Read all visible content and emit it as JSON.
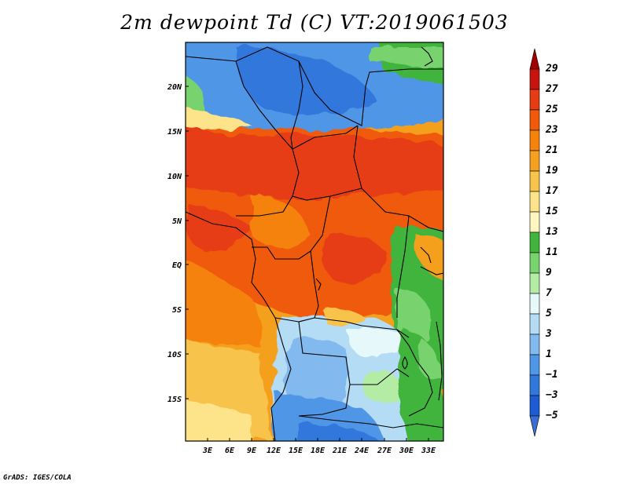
{
  "title": "2m dewpoint Td (C) VT:2019061503",
  "credit": "GrADS: IGES/COLA",
  "map": {
    "lat_labels": [
      "20N",
      "15N",
      "10N",
      "5N",
      "EQ",
      "5S",
      "10S",
      "15S"
    ],
    "lon_labels": [
      "3E",
      "6E",
      "9E",
      "12E",
      "15E",
      "18E",
      "21E",
      "24E",
      "27E",
      "30E",
      "33E"
    ]
  },
  "colorbar": {
    "labels": [
      "29",
      "27",
      "25",
      "23",
      "21",
      "19",
      "17",
      "15",
      "13",
      "11",
      "9",
      "7",
      "5",
      "3",
      "1",
      "−1",
      "−3",
      "−5"
    ],
    "colors": [
      "#a00000",
      "#c8140f",
      "#e63c14",
      "#f05a0a",
      "#f5820a",
      "#f5a01e",
      "#f7c34b",
      "#fde38a",
      "#fff5c0",
      "#41b43c",
      "#78d26e",
      "#b4eba5",
      "#e6f8fa",
      "#b4dcf5",
      "#82b9ee",
      "#5096e6",
      "#3278dc",
      "#1e5ad2",
      "#3c6ed2"
    ]
  }
}
